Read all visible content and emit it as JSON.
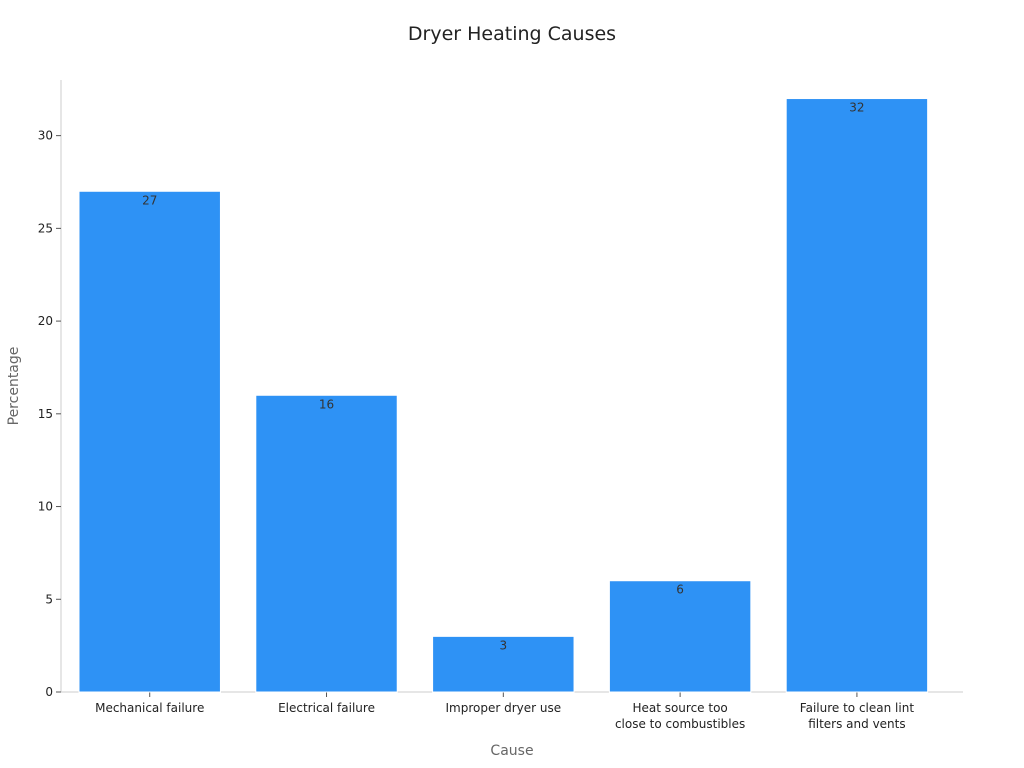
{
  "chart_data": {
    "type": "bar",
    "title": "Dryer Heating Causes",
    "xlabel": "Cause",
    "ylabel": "Percentage",
    "categories": [
      [
        "Mechanical failure"
      ],
      [
        "Electrical failure"
      ],
      [
        "Improper dryer use"
      ],
      [
        "Heat source too",
        "close to combustibles"
      ],
      [
        "Failure to clean lint",
        "filters and vents"
      ]
    ],
    "values": [
      27,
      16,
      3,
      6,
      32
    ],
    "ylim": [
      0,
      33
    ],
    "yticks": [
      0,
      5,
      10,
      15,
      20,
      25,
      30
    ],
    "bar_color": "#2e92f5",
    "grid": false,
    "legend": false
  }
}
